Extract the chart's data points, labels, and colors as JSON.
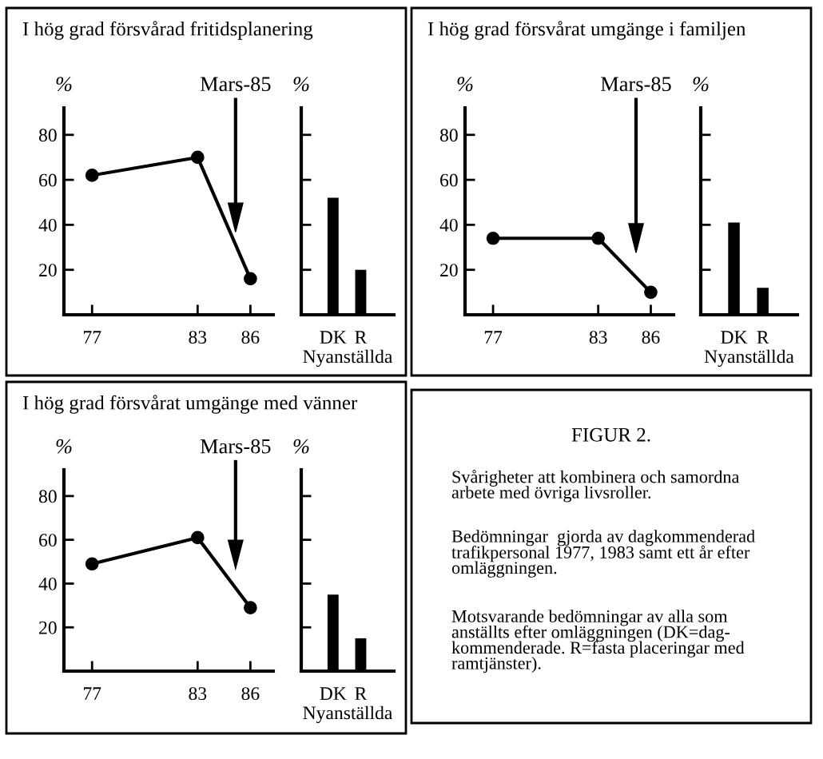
{
  "chart_data": [
    {
      "type": "line",
      "title": "I hög grad försvårad fritidsplanering",
      "ylabel": "%",
      "x": [
        77,
        83,
        86
      ],
      "xlim": [
        75.4,
        87.3
      ],
      "xticks": [
        77,
        83,
        86
      ],
      "ylim": [
        0,
        92
      ],
      "yticks": [
        20,
        40,
        60,
        80
      ],
      "marker": "circle",
      "series": [
        {
          "color": "#000000",
          "values": [
            62,
            70,
            16
          ]
        }
      ],
      "annotations": [
        "Mars-85"
      ]
    },
    {
      "type": "bar",
      "ylabel": "%",
      "xlabel": "Nyanställda",
      "categories": [
        "DK",
        "R"
      ],
      "ylim": [
        0,
        92
      ],
      "yticks": [
        {
          "value": 20,
          "label": null
        },
        {
          "value": 40,
          "label": null
        },
        {
          "value": 60,
          "label": null
        },
        {
          "value": 80,
          "label": null
        }
      ],
      "tick_labels": "x",
      "series": [
        {
          "color": "#000000",
          "values": [
            52,
            20
          ]
        }
      ]
    },
    {
      "type": "line",
      "title": "I hög grad försvårat umgänge i familjen",
      "ylabel": "%",
      "x": [
        77,
        83,
        86
      ],
      "xlim": [
        75.4,
        87.3
      ],
      "xticks": [
        77,
        83,
        86
      ],
      "ylim": [
        0,
        92
      ],
      "yticks": [
        20,
        40,
        60,
        80
      ],
      "marker": "circle",
      "series": [
        {
          "color": "#000000",
          "values": [
            34,
            34,
            10
          ]
        }
      ],
      "annotations": [
        "Mars-85"
      ]
    },
    {
      "type": "bar",
      "ylabel": "%",
      "xlabel": "Nyanställda",
      "categories": [
        "DK",
        "R"
      ],
      "ylim": [
        0,
        92
      ],
      "yticks": [
        {
          "value": 20,
          "label": null
        },
        {
          "value": 40,
          "label": null
        },
        {
          "value": 60,
          "label": null
        },
        {
          "value": 80,
          "label": null
        }
      ],
      "tick_labels": "x",
      "series": [
        {
          "color": "#000000",
          "values": [
            41,
            12
          ]
        }
      ]
    },
    {
      "type": "line",
      "title": "I hög grad försvårat umgänge med vänner",
      "ylabel": "%",
      "x": [
        77,
        83,
        86
      ],
      "xlim": [
        75.4,
        87.3
      ],
      "xticks": [
        77,
        83,
        86
      ],
      "ylim": [
        0,
        92
      ],
      "yticks": [
        20,
        40,
        60,
        80
      ],
      "marker": "circle",
      "series": [
        {
          "color": "#000000",
          "values": [
            49,
            61,
            29
          ]
        }
      ],
      "annotations": [
        "Mars-85"
      ]
    },
    {
      "type": "bar",
      "ylabel": "%",
      "xlabel": "Nyanställda",
      "categories": [
        "DK",
        "R"
      ],
      "ylim": [
        0,
        92
      ],
      "yticks": [
        {
          "value": 20,
          "label": null
        },
        {
          "value": 40,
          "label": null
        },
        {
          "value": 60,
          "label": null
        },
        {
          "value": 80,
          "label": null
        }
      ],
      "tick_labels": "x",
      "series": [
        {
          "color": "#000000",
          "values": [
            35,
            15
          ]
        }
      ]
    },
    {
      "type": "other",
      "title": "FIGUR 2.",
      "annotations": [
        "Svårigheter att kombinera och samordna\narbete med övriga livsroller.",
        "Bedömningar  gjorda av dagkommenderad\ntrafikpersonal 1977, 1983 samt ett år efter\nomläggningen.",
        "Motsvarande bedömningar av alla som\nanställts efter omläggningen (DK=dag-\nkommenderade. R=fasta placeringar med\nramtjänster)."
      ]
    }
  ]
}
